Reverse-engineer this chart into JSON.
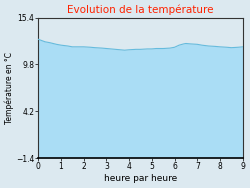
{
  "title": "Evolution de la température",
  "title_color": "#ff2200",
  "xlabel": "heure par heure",
  "ylabel": "Température en °C",
  "background_color": "#dce9f0",
  "plot_bg_color": "#dce9f0",
  "fill_color": "#aaddf5",
  "line_color": "#66bbdd",
  "ylim": [
    -1.4,
    15.4
  ],
  "xlim": [
    0,
    9
  ],
  "yticks": [
    -1.4,
    4.2,
    9.8,
    15.4
  ],
  "xticks": [
    0,
    1,
    2,
    3,
    4,
    5,
    6,
    7,
    8,
    9
  ],
  "x": [
    0,
    0.1,
    0.3,
    0.5,
    0.8,
    1.0,
    1.3,
    1.5,
    1.8,
    2.0,
    2.3,
    2.5,
    2.8,
    3.0,
    3.2,
    3.4,
    3.6,
    3.8,
    4.0,
    4.3,
    4.5,
    4.8,
    5.0,
    5.2,
    5.5,
    5.8,
    6.0,
    6.2,
    6.4,
    6.5,
    6.7,
    7.0,
    7.2,
    7.5,
    7.8,
    8.0,
    8.3,
    8.5,
    8.8,
    9.0
  ],
  "y": [
    12.8,
    12.7,
    12.5,
    12.4,
    12.2,
    12.1,
    12.0,
    11.9,
    11.9,
    11.9,
    11.85,
    11.8,
    11.75,
    11.7,
    11.65,
    11.6,
    11.55,
    11.5,
    11.55,
    11.6,
    11.6,
    11.65,
    11.65,
    11.7,
    11.7,
    11.75,
    11.85,
    12.1,
    12.25,
    12.3,
    12.25,
    12.2,
    12.1,
    12.0,
    11.95,
    11.9,
    11.85,
    11.8,
    11.85,
    11.9
  ]
}
